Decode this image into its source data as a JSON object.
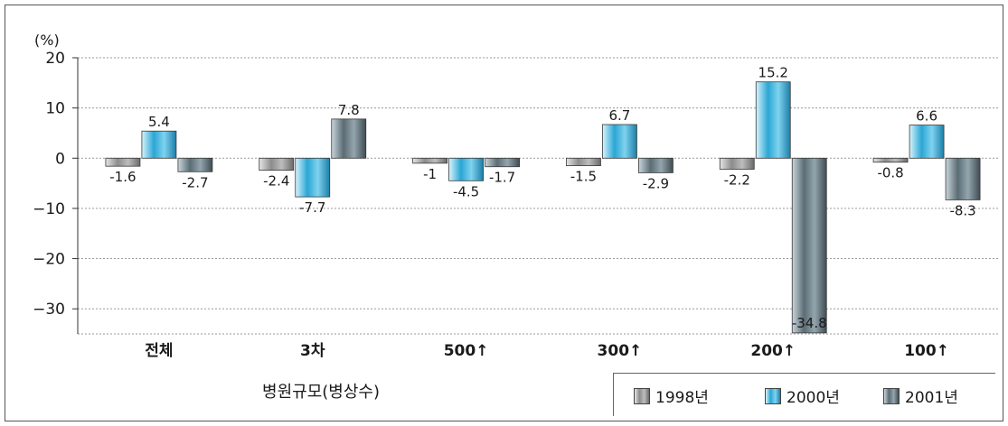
{
  "chart_data": {
    "type": "bar",
    "y_unit_label": "(%)",
    "xlabel": "병원규모(병상수)",
    "categories": [
      "전체",
      "3차",
      "500↑",
      "300↑",
      "200↑",
      "100↑"
    ],
    "series": [
      {
        "name": "1998년",
        "values": [
          -1.6,
          -2.4,
          -1,
          -1.5,
          -2.2,
          -0.8
        ],
        "value_labels": [
          "-1.6",
          "-2.4",
          "-1",
          "-1.5",
          "-2.2",
          "-0.8"
        ],
        "color": "#9a9a9a"
      },
      {
        "name": "2000년",
        "values": [
          5.4,
          -7.7,
          -4.5,
          6.7,
          15.2,
          6.6
        ],
        "value_labels": [
          "5.4",
          "-7.7",
          "-4.5",
          "6.7",
          "15.2",
          "6.6"
        ],
        "color": "#3eaed6"
      },
      {
        "name": "2001년",
        "values": [
          -2.7,
          7.8,
          -1.7,
          -2.9,
          -34.8,
          -8.3
        ],
        "value_labels": [
          "-2.7",
          "7.8",
          "-1.7",
          "-2.9",
          "-34.8",
          "-8.3"
        ],
        "color": "#6e8088"
      }
    ],
    "ylim": [
      -35,
      20
    ],
    "yticks": [
      20,
      10,
      0,
      -10,
      -20,
      -30
    ],
    "ytick_labels": [
      "20",
      "10",
      "0",
      "−10",
      "−20",
      "−30"
    ],
    "grid": "horizontal-dotted",
    "legend_position": "bottom-right"
  }
}
